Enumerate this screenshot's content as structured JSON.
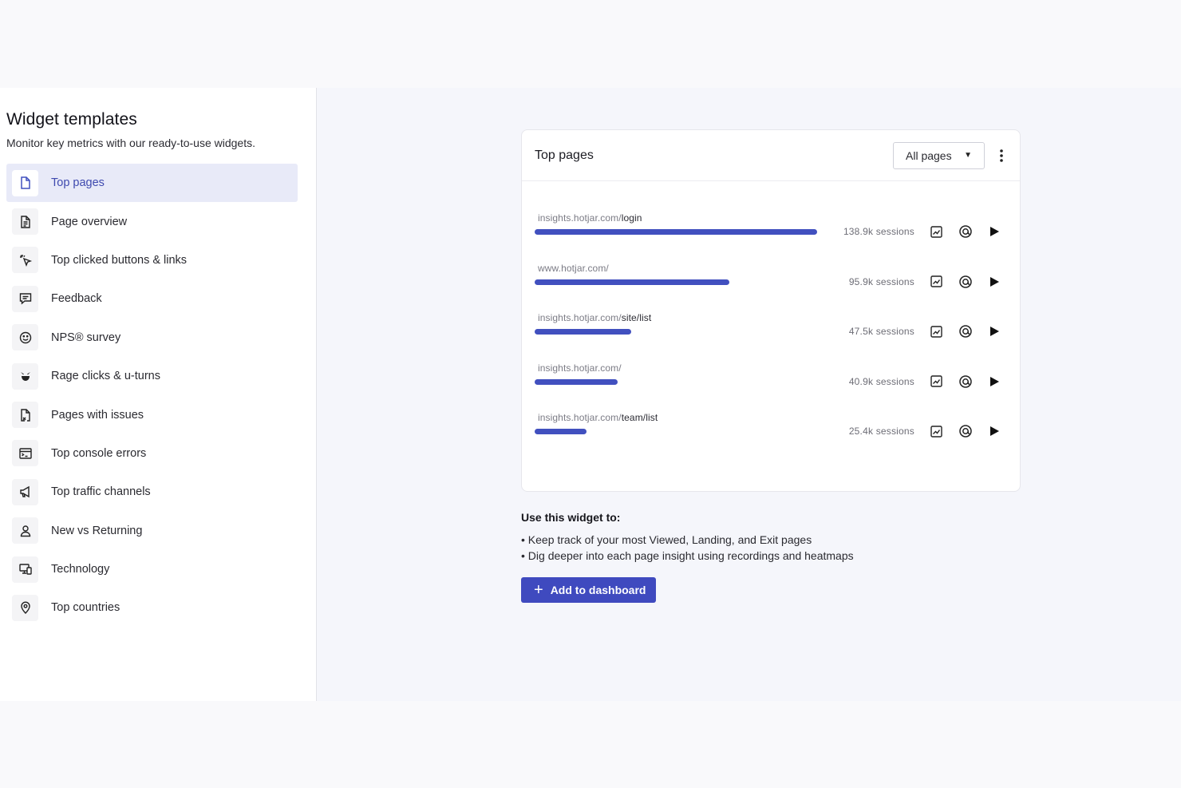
{
  "sidebar": {
    "title": "Widget templates",
    "subtitle": "Monitor key metrics with our ready-to-use widgets.",
    "items": [
      {
        "label": "Top pages",
        "icon": "page-icon",
        "active": true
      },
      {
        "label": "Page overview",
        "icon": "document-icon"
      },
      {
        "label": "Top clicked buttons & links",
        "icon": "click-icon"
      },
      {
        "label": "Feedback",
        "icon": "feedback-icon"
      },
      {
        "label": "NPS® survey",
        "icon": "smiley-icon"
      },
      {
        "label": "Rage clicks & u-turns",
        "icon": "rage-icon"
      },
      {
        "label": "Pages with issues",
        "icon": "page-issue-icon"
      },
      {
        "label": "Top console errors",
        "icon": "console-icon"
      },
      {
        "label": "Top traffic channels",
        "icon": "megaphone-icon"
      },
      {
        "label": "New vs Returning",
        "icon": "user-icon"
      },
      {
        "label": "Technology",
        "icon": "devices-icon"
      },
      {
        "label": "Top countries",
        "icon": "location-pin-icon"
      }
    ]
  },
  "widget": {
    "title": "Top pages",
    "dropdown_value": "All pages",
    "rows": [
      {
        "domain": "insights.hotjar.com/",
        "path": "login",
        "sessions": "138.9k sessions",
        "fraction": 1.0
      },
      {
        "domain": "www.hotjar.com/",
        "path": "",
        "sessions": "95.9k sessions",
        "fraction": 0.69
      },
      {
        "domain": "insights.hotjar.com/",
        "path": "site/list",
        "sessions": "47.5k sessions",
        "fraction": 0.343
      },
      {
        "domain": "insights.hotjar.com/",
        "path": "",
        "sessions": "40.9k sessions",
        "fraction": 0.295
      },
      {
        "domain": "insights.hotjar.com/",
        "path": "team/list",
        "sessions": "25.4k sessions",
        "fraction": 0.183
      }
    ]
  },
  "usage": {
    "title": "Use this widget to:",
    "bullets": [
      "Keep track of your most Viewed, Landing, and Exit pages",
      "Dig deeper into each page insight using recordings and heatmaps"
    ],
    "button_label": "Add to dashboard"
  },
  "colors": {
    "accent": "#3f4abf",
    "bar": "#4150bf",
    "active_bg": "#e8eaf8"
  }
}
